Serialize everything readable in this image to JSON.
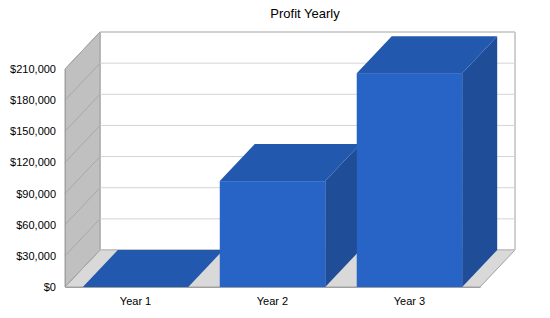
{
  "chart_data": {
    "type": "bar",
    "title": "Profit Yearly",
    "categories": [
      "Year 1",
      "Year 2",
      "Year 3"
    ],
    "values": [
      0,
      102000,
      206000
    ],
    "color": "#2864c6",
    "ylim": [
      0,
      210000
    ],
    "yticks": [
      {
        "value": 0,
        "label": "$0"
      },
      {
        "value": 30000,
        "label": "$30,000"
      },
      {
        "value": 60000,
        "label": "$60,000"
      },
      {
        "value": 90000,
        "label": "$90,000"
      },
      {
        "value": 120000,
        "label": "$120,000"
      },
      {
        "value": 150000,
        "label": "$150,000"
      },
      {
        "value": 180000,
        "label": "$180,000"
      },
      {
        "value": 210000,
        "label": "$210,000"
      }
    ],
    "grid": true
  }
}
